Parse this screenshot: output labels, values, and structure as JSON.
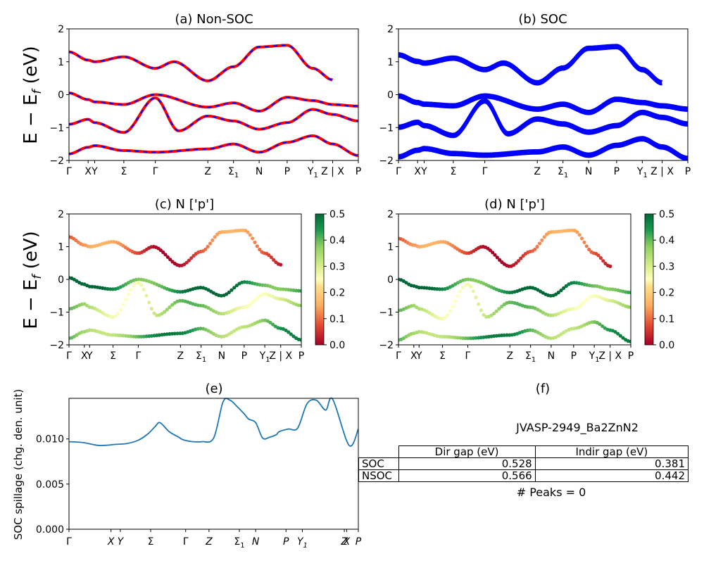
{
  "titles": {
    "a": "(a) Non-SOC",
    "b": "(b) SOC",
    "c": "(c)  N ['p']",
    "d": "(d) N ['p']",
    "e": "(e)",
    "f": "(f)"
  },
  "ylabel_band": "E − E",
  "ylabel_band_sub": "f",
  "ylabel_band_unit": " (eV)",
  "ylabel_spillage": "SOC spillage (chg. den. unit)",
  "kpath_labels": [
    "Γ",
    "X",
    "Y",
    "Σ",
    "Γ",
    "Z",
    "Σ",
    "N",
    "P",
    "Y",
    "Z | X",
    "P"
  ],
  "kpath_subscripts": [
    "",
    "",
    "",
    "",
    "",
    "",
    "1",
    "",
    "",
    "1",
    "",
    ""
  ],
  "band_yticks": [
    "2",
    "1",
    "0",
    "−1",
    "−2"
  ],
  "colorbar_ticks": [
    "0.5",
    "0.4",
    "0.3",
    "0.2",
    "0.1",
    "0.0"
  ],
  "spill_yticks": [
    "0.010",
    "0.005",
    "0.000"
  ],
  "spill_xlabels": [
    "Γ",
    "X",
    "Y",
    "Σ",
    "Γ",
    "Z",
    "Σ",
    "N",
    "P",
    "Y",
    "Z",
    "X",
    "P"
  ],
  "spill_xsubs": [
    "",
    "",
    "",
    "",
    "",
    "",
    "1",
    "",
    "",
    "1",
    "",
    "",
    ""
  ],
  "panel_f": {
    "material": "JVASP-2949_Ba2ZnN2",
    "col_headers": [
      "Dir gap (eV)",
      "Indir gap (eV)"
    ],
    "rows": [
      {
        "label": "SOC",
        "dir": "0.528",
        "indir": "0.381"
      },
      {
        "label": "NSOC",
        "dir": "0.566",
        "indir": "0.442"
      }
    ],
    "peaks": "# Peaks = 0"
  },
  "colors": {
    "nonsoc_a": "#ff0000",
    "nonsoc_b": "#0000ff",
    "soc": "#0000ff",
    "spillage": "#1f77b4"
  },
  "chart_data": [
    {
      "type": "line",
      "title": "(a) Non-SOC",
      "ylabel": "E − E_f (eV)",
      "ylim": [
        -2,
        2
      ],
      "x_ticks": [
        "Γ",
        "X",
        "Y",
        "Σ",
        "Γ",
        "Z",
        "Σ1",
        "N",
        "P",
        "Y1",
        "Z | X",
        "P"
      ],
      "x_tick_pos": [
        0,
        0.082,
        0.11,
        0.235,
        0.37,
        0.595,
        0.705,
        0.815,
        0.935,
        1.045,
        1.13,
        1.24
      ],
      "x_range": [
        0,
        1.24
      ],
      "series": [
        {
          "x": [
            0,
            0.082,
            0.11,
            0.235,
            0.37,
            0.45,
            0.595,
            0.705,
            0.815,
            0.935,
            1.045,
            1.13
          ],
          "values": [
            1.3,
            1.05,
            1.0,
            1.15,
            0.8,
            1.0,
            0.42,
            0.85,
            1.45,
            1.5,
            0.8,
            0.45
          ]
        },
        {
          "x": [
            0,
            0.082,
            0.11,
            0.235,
            0.37,
            0.595,
            0.705,
            0.815,
            0.935,
            1.045,
            1.13,
            1.24
          ],
          "values": [
            0.05,
            -0.15,
            -0.22,
            -0.3,
            0.0,
            -0.38,
            -0.25,
            -0.5,
            -0.08,
            -0.18,
            -0.3,
            -0.35
          ]
        },
        {
          "x": [
            0,
            0.082,
            0.11,
            0.235,
            0.37,
            0.47,
            0.595,
            0.705,
            0.815,
            0.935,
            1.045,
            1.13,
            1.24
          ],
          "values": [
            -0.9,
            -0.75,
            -0.85,
            -1.15,
            -0.1,
            -1.1,
            -0.65,
            -0.8,
            -1.05,
            -0.85,
            -0.45,
            -0.6,
            -0.8
          ]
        },
        {
          "x": [
            0,
            0.082,
            0.11,
            0.235,
            0.37,
            0.595,
            0.705,
            0.815,
            0.935,
            1.045,
            1.13,
            1.24
          ],
          "values": [
            -1.8,
            -1.6,
            -1.55,
            -1.7,
            -1.75,
            -1.65,
            -1.5,
            -1.75,
            -1.45,
            -1.25,
            -1.5,
            -1.85
          ]
        }
      ]
    },
    {
      "type": "line",
      "title": "(b) SOC",
      "ylim": [
        -2,
        2
      ],
      "x_ticks": [
        "Γ",
        "X",
        "Y",
        "Σ",
        "Γ",
        "Z",
        "Σ1",
        "N",
        "P",
        "Y1",
        "Z | X",
        "P"
      ],
      "series": [
        {
          "x": [
            0,
            0.082,
            0.11,
            0.235,
            0.37,
            0.45,
            0.595,
            0.705,
            0.815,
            0.935,
            1.045,
            1.13
          ],
          "values": [
            1.25,
            1.05,
            1.0,
            1.15,
            0.8,
            1.0,
            0.4,
            0.85,
            1.45,
            1.5,
            0.8,
            0.4
          ]
        },
        {
          "x": [
            0,
            0.082,
            0.11,
            0.235,
            0.37,
            0.595,
            0.705,
            0.815,
            0.935,
            1.045,
            1.13,
            1.24
          ],
          "values": [
            0.0,
            -0.2,
            -0.25,
            -0.3,
            0.0,
            -0.4,
            -0.25,
            -0.5,
            -0.1,
            -0.2,
            -0.3,
            -0.4
          ]
        },
        {
          "x": [
            0,
            0.082,
            0.11,
            0.235,
            0.37,
            0.47,
            0.595,
            0.705,
            0.815,
            0.935,
            1.045,
            1.13,
            1.24
          ],
          "values": [
            -0.95,
            -0.8,
            -0.9,
            -1.2,
            -0.15,
            -1.15,
            -0.7,
            -0.85,
            -1.1,
            -0.9,
            -0.5,
            -0.65,
            -0.85
          ]
        },
        {
          "x": [
            0,
            0.082,
            0.11,
            0.235,
            0.37,
            0.595,
            0.705,
            0.815,
            0.935,
            1.045,
            1.13,
            1.24
          ],
          "values": [
            -1.85,
            -1.65,
            -1.6,
            -1.75,
            -1.8,
            -1.7,
            -1.55,
            -1.8,
            -1.5,
            -1.3,
            -1.55,
            -1.9
          ]
        }
      ]
    },
    {
      "type": "scatter",
      "title": "(c)  N ['p']",
      "ylim": [
        -2,
        2
      ],
      "colorbar": {
        "range": [
          0,
          0.5
        ],
        "colormap": "RdYlGn"
      }
    },
    {
      "type": "scatter",
      "title": "(d) N ['p']",
      "ylim": [
        -2,
        2
      ],
      "colorbar": {
        "range": [
          0,
          0.5
        ],
        "colormap": "RdYlGn"
      }
    },
    {
      "type": "line",
      "title": "(e)",
      "ylabel": "SOC spillage (chg. den. unit)",
      "ylim": [
        0,
        0.0145
      ],
      "x": [
        0,
        0.06,
        0.12,
        0.16,
        0.2,
        0.25,
        0.3,
        0.34,
        0.37,
        0.39,
        0.43,
        0.47,
        0.49,
        0.53,
        0.57,
        0.62,
        0.66,
        0.69,
        0.72,
        0.75,
        0.77,
        0.8,
        0.83,
        0.86,
        0.89,
        0.9,
        0.94,
        0.98,
        1.02,
        1.06,
        1.1,
        1.13,
        1.2,
        1.24
      ],
      "values": [
        0.0097,
        0.0096,
        0.0093,
        0.0093,
        0.0094,
        0.0095,
        0.0099,
        0.0106,
        0.0114,
        0.0118,
        0.0108,
        0.0102,
        0.0099,
        0.0097,
        0.0097,
        0.0101,
        0.0141,
        0.0143,
        0.0136,
        0.0128,
        0.0122,
        0.0118,
        0.0101,
        0.0102,
        0.0105,
        0.0108,
        0.0111,
        0.0112,
        0.0139,
        0.0143,
        0.0132,
        0.0144,
        0.0093,
        0.0111
      ]
    }
  ]
}
